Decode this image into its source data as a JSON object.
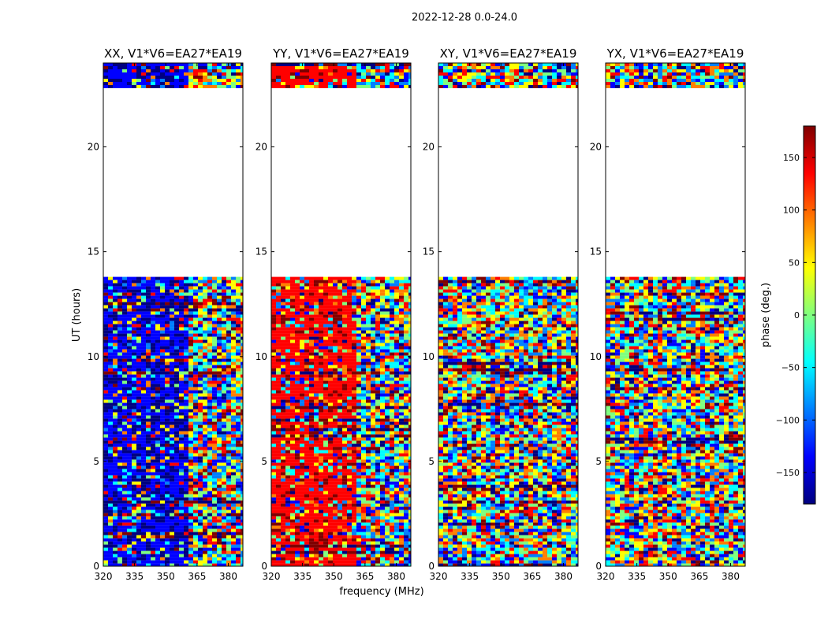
{
  "figure_title": "2022-12-28 0.0-24.0",
  "chart_data": {
    "type": "heatmap",
    "xlabel": "frequency (MHz)",
    "ylabel": "UT (hours)",
    "xlim": [
      320,
      387
    ],
    "ylim": [
      0,
      24
    ],
    "xticks": [
      320,
      335,
      350,
      365,
      380
    ],
    "yticks": [
      0,
      5,
      10,
      15,
      20
    ],
    "panels": [
      {
        "title": "XX, V1*V6=EA27*EA19",
        "dominant_phase": -150
      },
      {
        "title": "YY, V1*V6=EA27*EA19",
        "dominant_phase": 140
      },
      {
        "title": "XY, V1*V6=EA27*EA19",
        "dominant_phase": null
      },
      {
        "title": "YX, V1*V6=EA27*EA19",
        "dominant_phase": null
      }
    ],
    "data_segments_hours": [
      [
        0,
        13.8
      ],
      [
        22.8,
        24
      ]
    ],
    "colorbar": {
      "label": "phase (deg.)",
      "range": [
        -180,
        180
      ],
      "ticks": [
        -150,
        -100,
        -50,
        0,
        50,
        100,
        150
      ],
      "tick_labels": [
        "−150",
        "−100",
        "−50",
        "0",
        "50",
        "100",
        "150"
      ],
      "colormap": "jet",
      "colors": [
        "#00007f",
        "#0000ff",
        "#007fff",
        "#00ffff",
        "#7fff7f",
        "#ffff00",
        "#ff7f00",
        "#ff0000",
        "#7f0000"
      ]
    }
  }
}
